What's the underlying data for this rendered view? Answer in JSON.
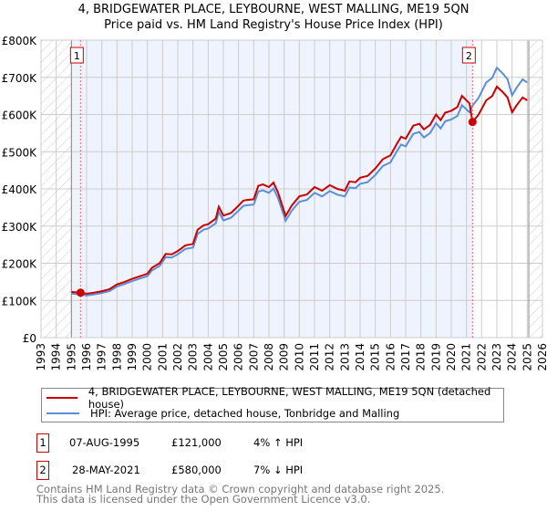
{
  "chart_data": {
    "type": "line",
    "title": "4, BRIDGEWATER PLACE, LEYBOURNE, WEST MALLING, ME19 5QN",
    "subtitle": "Price paid vs. HM Land Registry's House Price Index (HPI)",
    "xlim": [
      1993,
      2026
    ],
    "ylim": [
      0,
      800000
    ],
    "x_ticks": [
      "1993",
      "1994",
      "1995",
      "1996",
      "1997",
      "1998",
      "1999",
      "2000",
      "2001",
      "2002",
      "2003",
      "2004",
      "2005",
      "2006",
      "2007",
      "2008",
      "2009",
      "2010",
      "2011",
      "2012",
      "2013",
      "2014",
      "2015",
      "2016",
      "2017",
      "2018",
      "2019",
      "2020",
      "2021",
      "2022",
      "2023",
      "2024",
      "2025",
      "2026"
    ],
    "y_ticks": [
      {
        "v": 0,
        "label": "£0"
      },
      {
        "v": 100000,
        "label": "£100K"
      },
      {
        "v": 200000,
        "label": "£200K"
      },
      {
        "v": 300000,
        "label": "£300K"
      },
      {
        "v": 400000,
        "label": "£400K"
      },
      {
        "v": 500000,
        "label": "£500K"
      },
      {
        "v": 600000,
        "label": "£600K"
      },
      {
        "v": 700000,
        "label": "£700K"
      },
      {
        "v": 800000,
        "label": "£800K"
      }
    ],
    "grid": true,
    "data_range": [
      1995.0,
      2025.1
    ],
    "series": [
      {
        "name": "4, BRIDGEWATER PLACE, LEYBOURNE, WEST MALLING, ME19 5QN (detached house)",
        "color": "#cc0000",
        "x": [
          1995.0,
          1995.6,
          1996.0,
          1996.5,
          1997.0,
          1997.5,
          1998.0,
          1998.5,
          1999.0,
          1999.5,
          2000.0,
          2000.3,
          2000.8,
          2001.2,
          2001.6,
          2002.0,
          2002.5,
          2003.0,
          2003.3,
          2003.7,
          2004.0,
          2004.5,
          2004.7,
          2005.0,
          2005.5,
          2006.0,
          2006.3,
          2006.5,
          2007.0,
          2007.3,
          2007.6,
          2008.0,
          2008.3,
          2008.6,
          2009.1,
          2009.5,
          2010.0,
          2010.5,
          2011.0,
          2011.5,
          2012.0,
          2012.5,
          2013.0,
          2013.3,
          2013.7,
          2014.0,
          2014.5,
          2015.0,
          2015.5,
          2016.0,
          2016.4,
          2016.7,
          2017.0,
          2017.5,
          2017.9,
          2018.2,
          2018.6,
          2019.0,
          2019.3,
          2019.6,
          2020.0,
          2020.4,
          2020.7,
          2021.2,
          2021.4,
          2021.8,
          2022.3,
          2022.7,
          2023.0,
          2023.4,
          2023.7,
          2024.0,
          2024.3,
          2024.7,
          2025.0
        ],
        "y": [
          123000,
          121000,
          118000,
          121000,
          125000,
          130000,
          143000,
          150000,
          158000,
          165000,
          172000,
          188000,
          200000,
          225000,
          224000,
          233000,
          248000,
          252000,
          290000,
          302000,
          305000,
          320000,
          352000,
          328000,
          335000,
          355000,
          368000,
          370000,
          372000,
          408000,
          412000,
          405000,
          417000,
          390000,
          327000,
          355000,
          380000,
          385000,
          405000,
          395000,
          410000,
          400000,
          395000,
          420000,
          418000,
          430000,
          435000,
          455000,
          480000,
          490000,
          520000,
          540000,
          535000,
          570000,
          575000,
          560000,
          572000,
          600000,
          585000,
          605000,
          610000,
          620000,
          650000,
          630000,
          580000,
          600000,
          638000,
          650000,
          675000,
          660000,
          646000,
          606000,
          625000,
          646000,
          638000
        ]
      },
      {
        "name": "HPI: Average price, detached house, Tonbridge and Malling",
        "color": "#5b8fd6",
        "ratio_note": "derived"
      }
    ],
    "sales": [
      {
        "label": "1",
        "x": 1995.6,
        "date": "07-AUG-1995",
        "price": "£121,000",
        "value": 121000,
        "hpi": "4% ↑ HPI"
      },
      {
        "label": "2",
        "x": 2021.4,
        "date": "28-MAY-2021",
        "price": "£580,000",
        "value": 580000,
        "hpi": "7% ↓ HPI"
      }
    ]
  },
  "footer": [
    "Contains HM Land Registry data © Crown copyright and database right 2025.",
    "This data is licensed under the Open Government Licence v3.0."
  ]
}
